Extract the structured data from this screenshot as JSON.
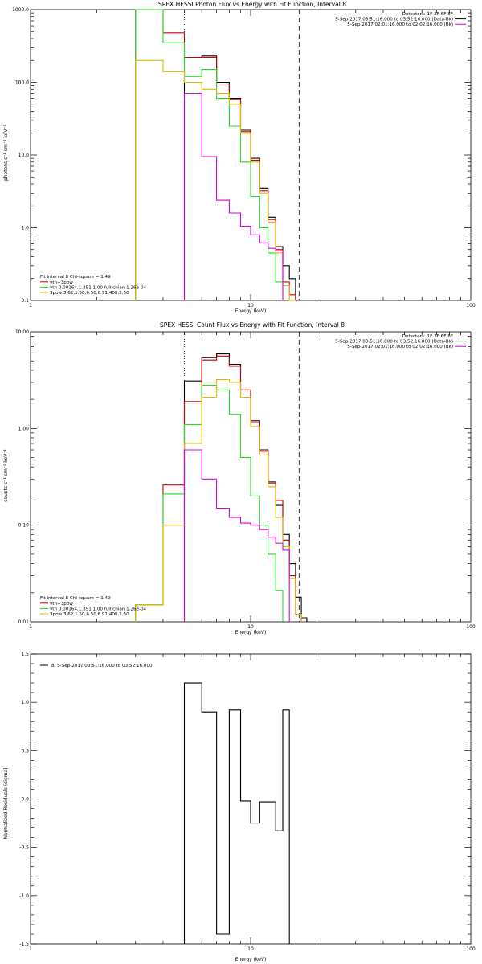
{
  "colors": {
    "black": "#000000",
    "red": "#cc0000",
    "green": "#22dd22",
    "magenta": "#dd00dd",
    "yellow": "#ddbb00"
  },
  "chart_data": [
    {
      "type": "line",
      "title": "SPEX HESSI Photon Flux vs Energy with Fit Function, Interval 8",
      "xlabel": "Energy (keV)",
      "ylabel": "photons s⁻¹ cm⁻² keV⁻¹",
      "xscale": "log",
      "yscale": "log",
      "xlim": [
        1,
        100
      ],
      "ylim": [
        0.1,
        1000
      ],
      "xticks": [
        "1",
        "10",
        "100"
      ],
      "yticks": [
        "0.1",
        "1.0",
        "10.0",
        "100.0",
        "1000.0"
      ],
      "vlines": [
        {
          "x": 5.0,
          "style": "dotted"
        },
        {
          "x": 16.6,
          "style": "dashed"
        }
      ],
      "legend_top": {
        "lines": [
          "Detectors: 1F 3F 6F 8F",
          "5-Sep-2017 03:51:16.000 to 03:52:16.000 (Data-Bk)",
          "5-Sep-2017 02:01:16.000 to 02:02:16.000 (Bk)"
        ],
        "colors": [
          "",
          "#000000",
          "#dd00dd"
        ]
      },
      "legend_bottom": {
        "lines": [
          "Fit Interval 8   Chi-square = 1.49",
          "vth+3pow",
          "vth 0.00164,1.351,1.00  full chian 1.26e-04",
          "3pow 3.62,1.50,6.50,6.91,400,2.50"
        ],
        "colors": [
          "",
          "#cc0000",
          "#22dd22",
          "#ddbb00"
        ]
      },
      "edges": [
        3.0,
        4.0,
        5.0,
        5.5,
        6.0,
        6.5,
        7.0,
        7.5,
        8.0,
        9.0,
        10.0,
        11.0,
        12.0,
        13.0,
        14.0,
        15.0,
        16.0,
        17.0
      ],
      "series": [
        {
          "name": "Data-Bk",
          "color": "#000000",
          "values": [
            null,
            null,
            220,
            220,
            230,
            230,
            100,
            100,
            60,
            22,
            9,
            3.5,
            1.4,
            0.55,
            0.3,
            0.2,
            null
          ]
        },
        {
          "name": "vth+3pow",
          "color": "#cc0000",
          "values": [
            1000,
            480,
            220,
            220,
            220,
            220,
            95,
            95,
            58,
            21,
            8.5,
            3.2,
            1.3,
            0.5,
            0.18,
            0.12,
            null
          ]
        },
        {
          "name": "vth",
          "color": "#22dd22",
          "values": [
            1000,
            350,
            120,
            120,
            150,
            150,
            60,
            60,
            25,
            8,
            2.7,
            1.0,
            0.45,
            0.18,
            null,
            null,
            null
          ]
        },
        {
          "name": "3pow",
          "color": "#ddbb00",
          "values": [
            200,
            140,
            100,
            100,
            80,
            80,
            70,
            70,
            50,
            20,
            8,
            3.0,
            1.2,
            0.45,
            0.16,
            0.1,
            null
          ]
        },
        {
          "name": "Bk",
          "color": "#dd00dd",
          "values": [
            null,
            null,
            70,
            70,
            9.5,
            9.5,
            2.4,
            2.4,
            1.6,
            1.05,
            0.8,
            0.62,
            0.52,
            0.48,
            null,
            null,
            null
          ]
        }
      ]
    },
    {
      "type": "line",
      "title": "SPEX HESSI Count Flux vs Energy with Fit Function, Interval 8",
      "xlabel": "Energy (keV)",
      "ylabel": "counts s⁻¹ cm⁻² keV⁻¹",
      "xscale": "log",
      "yscale": "log",
      "xlim": [
        1,
        100
      ],
      "ylim": [
        0.01,
        10
      ],
      "xticks": [
        "1",
        "10",
        "100"
      ],
      "yticks": [
        "0.01",
        "0.10",
        "1.00",
        "10.00"
      ],
      "vlines": [
        {
          "x": 5.0,
          "style": "dotted"
        },
        {
          "x": 16.6,
          "style": "dashed"
        }
      ],
      "legend_top": {
        "lines": [
          "Detectors: 1F 3F 6F 8F",
          "5-Sep-2017 03:51:16.000 to 03:52:16.000 (Data-Bk)",
          "5-Sep-2017 02:01:16.000 to 02:02:16.000 (Bk)"
        ],
        "colors": [
          "",
          "#000000",
          "#dd00dd"
        ]
      },
      "legend_bottom": {
        "lines": [
          "Fit Interval 8   Chi-square = 1.49",
          "vth+3pow",
          "vth 0.00164,1.351,1.00  full chian 1.26e-04",
          "3pow 3.62,1.50,6.50,6.91,400,2.50"
        ],
        "colors": [
          "",
          "#cc0000",
          "#22dd22",
          "#ddbb00"
        ]
      },
      "edges": [
        3.0,
        4.0,
        5.0,
        6.0,
        7.0,
        8.0,
        9.0,
        10.0,
        11.0,
        12.0,
        13.0,
        14.0,
        15.0,
        16.0,
        17.0,
        18.0
      ],
      "series": [
        {
          "name": "Data-Bk",
          "color": "#000000",
          "values": [
            null,
            null,
            3.1,
            5.4,
            5.9,
            4.6,
            2.5,
            1.2,
            0.6,
            0.28,
            0.16,
            0.08,
            0.04,
            0.018,
            0.011
          ]
        },
        {
          "name": "vth+3pow",
          "color": "#cc0000",
          "values": [
            0.015,
            0.26,
            1.9,
            5.1,
            5.6,
            4.4,
            2.5,
            1.15,
            0.58,
            0.27,
            0.18,
            0.07,
            0.03,
            0.012,
            null
          ]
        },
        {
          "name": "vth",
          "color": "#22dd22",
          "values": [
            0.015,
            0.21,
            1.1,
            2.8,
            2.5,
            1.4,
            0.5,
            0.2,
            0.1,
            0.05,
            0.021,
            null,
            null,
            null,
            null
          ]
        },
        {
          "name": "3pow",
          "color": "#ddbb00",
          "values": [
            0.015,
            0.1,
            0.7,
            2.1,
            3.2,
            3.0,
            2.1,
            1.05,
            0.53,
            0.25,
            0.12,
            0.06,
            0.028,
            0.012,
            null
          ]
        },
        {
          "name": "Bk",
          "color": "#dd00dd",
          "values": [
            null,
            null,
            0.6,
            0.3,
            0.15,
            0.12,
            0.105,
            0.1,
            0.09,
            0.075,
            0.065,
            0.055,
            null,
            null,
            null
          ]
        }
      ]
    },
    {
      "type": "line",
      "title": "",
      "xlabel": "Energy (keV)",
      "ylabel": "Normalized Residuals (sigma)",
      "xscale": "log",
      "yscale": "linear",
      "xlim": [
        1,
        100
      ],
      "ylim": [
        -1.5,
        1.5
      ],
      "xticks": [
        "1",
        "10",
        "100"
      ],
      "yticks": [
        "-1.5",
        "-1.0",
        "-0.5",
        "0.0",
        "0.5",
        "1.0",
        "1.5"
      ],
      "legend": "8,  5-Sep-2017 03:51:16.000 to 03:52:16.000",
      "edges": [
        5.0,
        6.0,
        7.0,
        8.0,
        9.0,
        10.0,
        11.0,
        12.0,
        13.0,
        14.0,
        15.0,
        16.6
      ],
      "series": [
        {
          "name": "",
          "color": "#000000",
          "values": [
            1.2,
            0.9,
            -1.4,
            0.92,
            -0.02,
            -0.25,
            -0.03,
            -0.03,
            -0.33,
            0.92,
            null
          ]
        }
      ]
    }
  ]
}
